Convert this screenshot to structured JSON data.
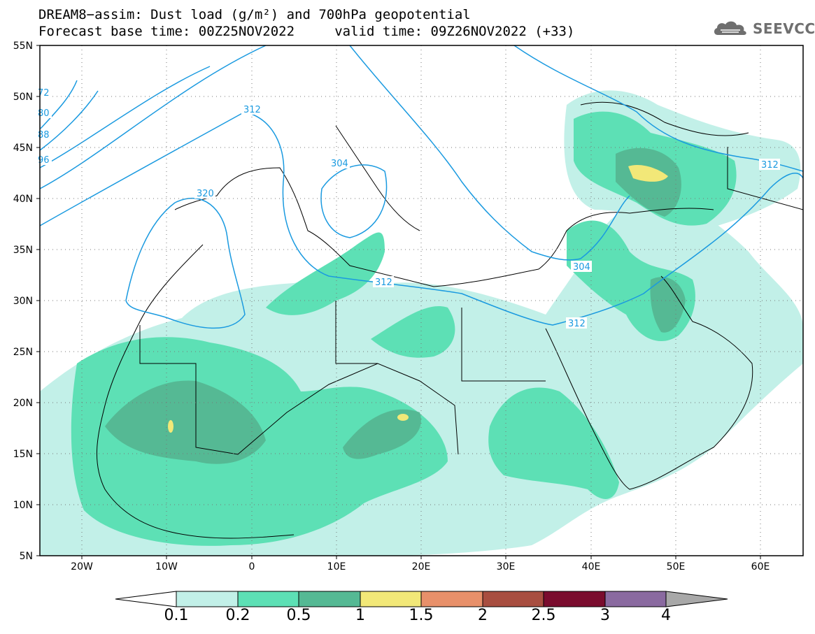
{
  "title_line1": "DREAM8−assim: Dust load (g/m²) and 700hPa geopotential",
  "title_line2": "Forecast base time: 00Z25NOV2022     valid time: 09Z26NOV2022 (+33)",
  "logo": {
    "icon": "cloud-logo-icon",
    "text": "SEEVCCC"
  },
  "map": {
    "lon_range": [
      -25,
      65
    ],
    "lat_range": [
      5,
      55
    ],
    "lat_ticks": [
      "55N",
      "50N",
      "45N",
      "40N",
      "35N",
      "30N",
      "25N",
      "20N",
      "15N",
      "10N",
      "5N"
    ],
    "lon_ticks": [
      "20W",
      "10W",
      "0",
      "10E",
      "20E",
      "30E",
      "40E",
      "50E",
      "60E"
    ],
    "contour_labels": [
      "72",
      "80",
      "88",
      "96",
      "312",
      "320",
      "304",
      "312",
      "304",
      "312",
      "312"
    ],
    "grid": "dotted"
  },
  "colorbar": {
    "labels": [
      "0.1",
      "0.2",
      "0.5",
      "1",
      "1.5",
      "2",
      "2.5",
      "3",
      "4"
    ],
    "colors": [
      "#c2f0e8",
      "#5de0b5",
      "#55b994",
      "#f2e878",
      "#e8906a",
      "#a84e40",
      "#7a0c2e",
      "#8a6aa0"
    ],
    "under_color": "#ffffff",
    "over_color": "#a8a8a8"
  }
}
